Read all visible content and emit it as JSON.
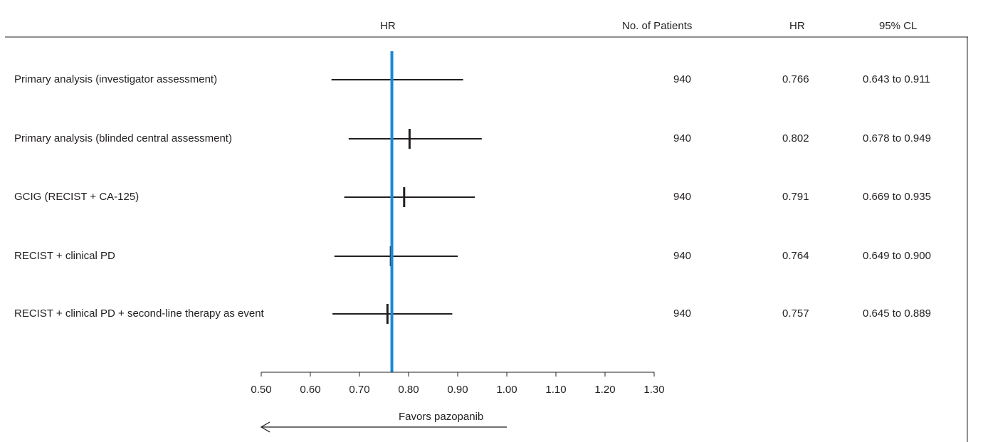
{
  "chart_data": {
    "type": "forest",
    "title": "",
    "xlabel": "HR",
    "xlim": [
      0.5,
      1.3
    ],
    "x_ticks": [
      "0.50",
      "0.60",
      "0.70",
      "0.80",
      "0.90",
      "1.00",
      "1.10",
      "1.20",
      "1.30"
    ],
    "reference_line": 0.766,
    "reference_color": "#1a8ad4",
    "columns": {
      "hr_axis": "HR",
      "patients": "No. of Patients",
      "hr": "HR",
      "ci": "95% CL"
    },
    "rows": [
      {
        "label": "Primary analysis (investigator assessment)",
        "n": "940",
        "hr": 0.766,
        "hr_text": "0.766",
        "lo": 0.643,
        "hi": 0.911,
        "ci_text": "0.643 to 0.911"
      },
      {
        "label": "Primary analysis (blinded central assessment)",
        "n": "940",
        "hr": 0.802,
        "hr_text": "0.802",
        "lo": 0.678,
        "hi": 0.949,
        "ci_text": "0.678 to 0.949"
      },
      {
        "label": "GCIG (RECIST + CA-125)",
        "n": "940",
        "hr": 0.791,
        "hr_text": "0.791",
        "lo": 0.669,
        "hi": 0.935,
        "ci_text": "0.669 to 0.935"
      },
      {
        "label": "RECIST + clinical PD",
        "n": "940",
        "hr": 0.764,
        "hr_text": "0.764",
        "lo": 0.649,
        "hi": 0.9,
        "ci_text": "0.649 to 0.900"
      },
      {
        "label": "RECIST + clinical PD + second-line therapy as event",
        "n": "940",
        "hr": 0.757,
        "hr_text": "0.757",
        "lo": 0.645,
        "hi": 0.889,
        "ci_text": "0.645 to 0.889"
      }
    ],
    "favors_label": "Favors pazopanib"
  }
}
